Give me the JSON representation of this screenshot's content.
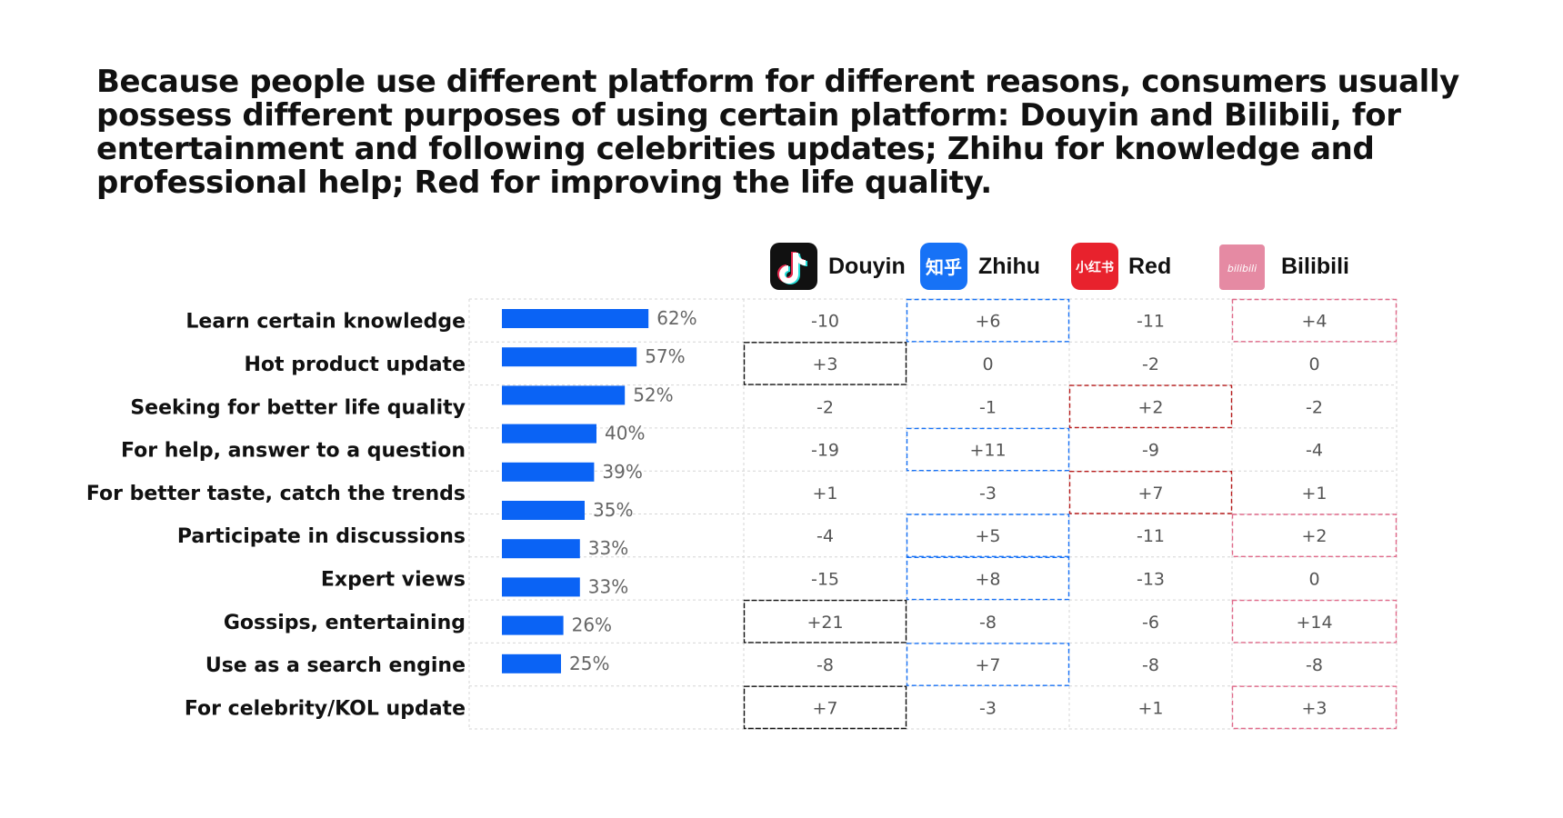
{
  "headline": "Because people use different platform for different reasons, consumers usually possess different purposes of using certain platform: Douyin and Bilibili, for entertainment and following celebrities updates; Zhihu for knowledge and professional help; Red for improving the life quality.",
  "platforms": [
    {
      "name": "Douyin",
      "icon": "douyin-icon",
      "accent": "#111111"
    },
    {
      "name": "Zhihu",
      "icon": "zhihu-icon",
      "logo_text": "知乎",
      "accent": "#1772f6"
    },
    {
      "name": "Red",
      "icon": "xiaohongshu-icon",
      "logo_text": "小红书",
      "accent": "#b71c1c"
    },
    {
      "name": "Bilibili",
      "icon": "bilibili-icon",
      "logo_text": "bilibili",
      "accent": "#e06a8a"
    }
  ],
  "chart_data": {
    "type": "bar",
    "orientation": "horizontal",
    "bar_color": "#0a63f5",
    "categories": [
      "Learn certain knowledge",
      "Hot product update",
      "Seeking for better life quality",
      "For help, answer to a question",
      "For better taste, catch the trends",
      "Participate in discussions",
      "Expert views",
      "Gossips, entertaining",
      "Use as a search engine",
      "For celebrity/KOL update"
    ],
    "values": [
      62,
      57,
      52,
      40,
      39,
      35,
      33,
      33,
      26,
      25
    ],
    "value_labels": [
      "62%",
      "57%",
      "52%",
      "40%",
      "39%",
      "35%",
      "33%",
      "33%",
      "26%",
      "25%"
    ],
    "xlim": [
      0,
      100
    ],
    "table": {
      "columns": [
        "Douyin",
        "Zhihu",
        "Red",
        "Bilibili"
      ],
      "rows": [
        [
          "-10",
          "+6",
          "-11",
          "+4"
        ],
        [
          "+3",
          "0",
          "-2",
          "0"
        ],
        [
          "-2",
          "-1",
          "+2",
          "-2"
        ],
        [
          "-19",
          "+11",
          "-9",
          "-4"
        ],
        [
          "+1",
          "-3",
          "+7",
          "+1"
        ],
        [
          "-4",
          "+5",
          "-11",
          "+2"
        ],
        [
          "-15",
          "+8",
          "-13",
          "0"
        ],
        [
          "+21",
          "-8",
          "-6",
          "+14"
        ],
        [
          "-8",
          "+7",
          "-8",
          "-8"
        ],
        [
          "+7",
          "-3",
          "+1",
          "+3"
        ]
      ],
      "highlighted": [
        [
          false,
          true,
          false,
          true
        ],
        [
          true,
          false,
          false,
          false
        ],
        [
          false,
          false,
          true,
          false
        ],
        [
          false,
          true,
          false,
          false
        ],
        [
          false,
          false,
          true,
          false
        ],
        [
          false,
          true,
          false,
          true
        ],
        [
          false,
          true,
          false,
          false
        ],
        [
          true,
          false,
          false,
          true
        ],
        [
          false,
          true,
          false,
          false
        ],
        [
          true,
          false,
          false,
          true
        ]
      ]
    }
  }
}
